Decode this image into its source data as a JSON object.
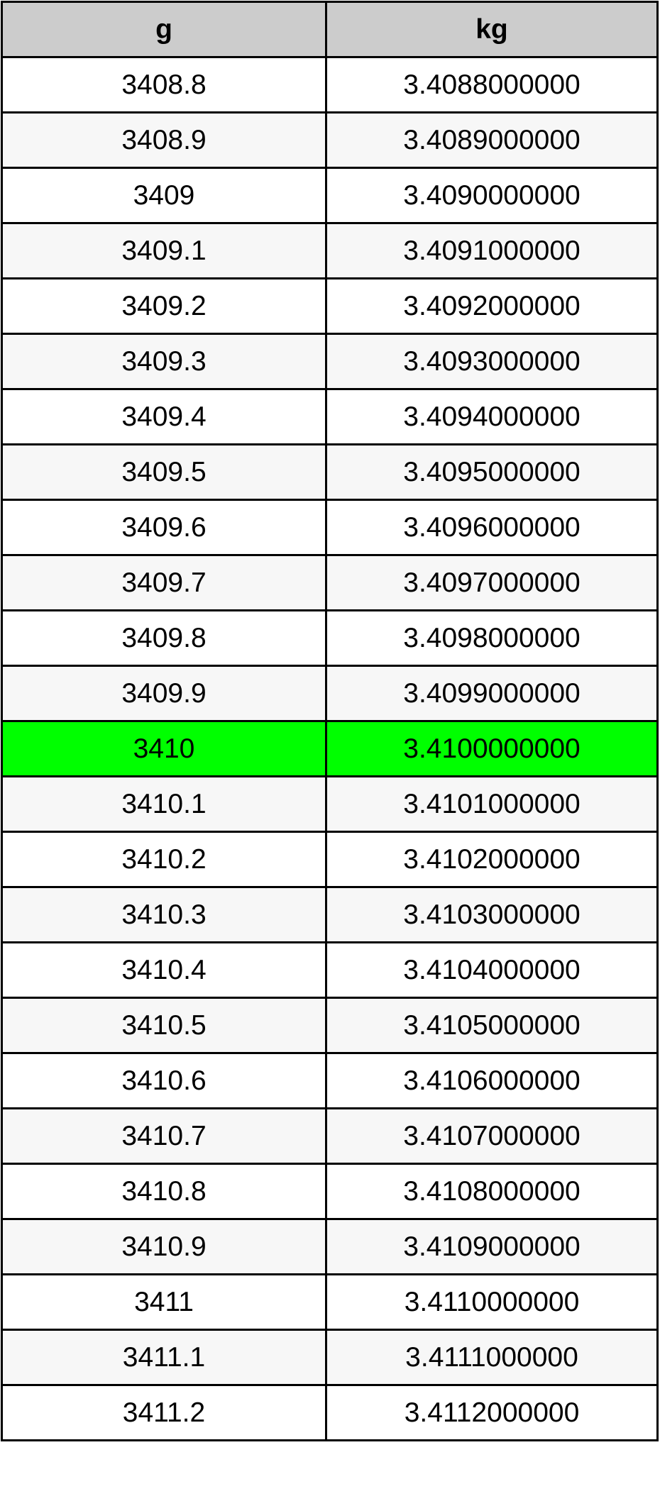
{
  "table": {
    "headers": [
      "g",
      "kg"
    ],
    "highlight_color": "#00ff00",
    "highlight_row": 12,
    "rows": [
      [
        "3408.8",
        "3.4088000000"
      ],
      [
        "3408.9",
        "3.4089000000"
      ],
      [
        "3409",
        "3.4090000000"
      ],
      [
        "3409.1",
        "3.4091000000"
      ],
      [
        "3409.2",
        "3.4092000000"
      ],
      [
        "3409.3",
        "3.4093000000"
      ],
      [
        "3409.4",
        "3.4094000000"
      ],
      [
        "3409.5",
        "3.4095000000"
      ],
      [
        "3409.6",
        "3.4096000000"
      ],
      [
        "3409.7",
        "3.4097000000"
      ],
      [
        "3409.8",
        "3.4098000000"
      ],
      [
        "3409.9",
        "3.4099000000"
      ],
      [
        "3410",
        "3.4100000000"
      ],
      [
        "3410.1",
        "3.4101000000"
      ],
      [
        "3410.2",
        "3.4102000000"
      ],
      [
        "3410.3",
        "3.4103000000"
      ],
      [
        "3410.4",
        "3.4104000000"
      ],
      [
        "3410.5",
        "3.4105000000"
      ],
      [
        "3410.6",
        "3.4106000000"
      ],
      [
        "3410.7",
        "3.4107000000"
      ],
      [
        "3410.8",
        "3.4108000000"
      ],
      [
        "3410.9",
        "3.4109000000"
      ],
      [
        "3411",
        "3.4110000000"
      ],
      [
        "3411.1",
        "3.4111000000"
      ],
      [
        "3411.2",
        "3.4112000000"
      ]
    ]
  }
}
